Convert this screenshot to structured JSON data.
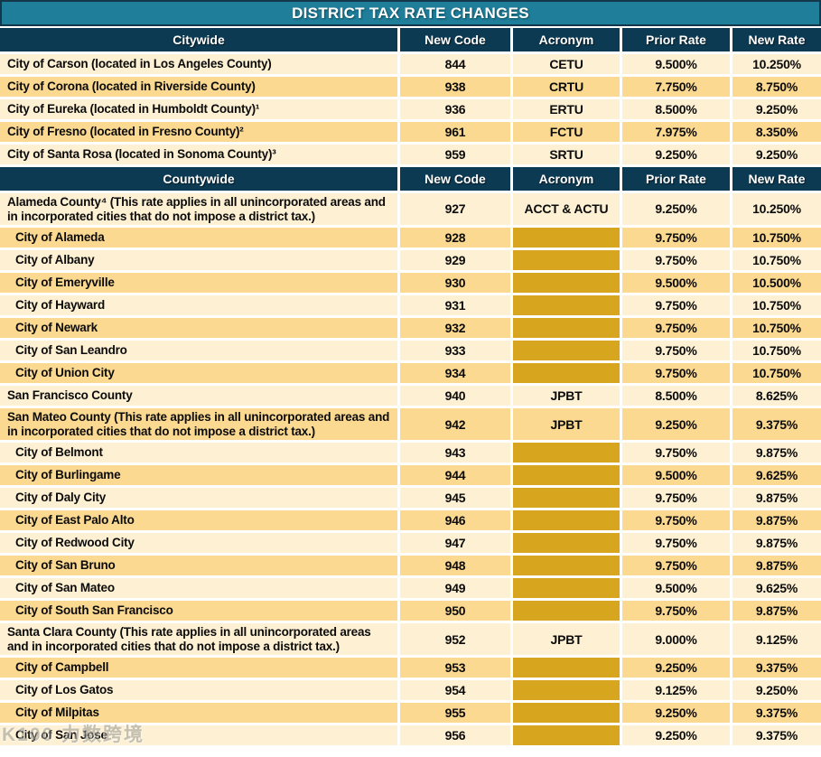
{
  "title": "DISTRICT TAX RATE CHANGES",
  "column_headers": [
    "New Code",
    "Acronym",
    "Prior Rate",
    "New Rate"
  ],
  "colors": {
    "title_teal": "#1F7F9B",
    "header_navy": "#0C3A52",
    "row_cream": "#FDF0D3",
    "row_tan": "#FBD991",
    "blank_gold": "#D8A51E"
  },
  "watermark": "K100 力数跨境",
  "sections": [
    {
      "label": "Citywide",
      "rows": [
        {
          "name": "City of Carson (located in Los Angeles County)",
          "code": "844",
          "acronym": "CETU",
          "prior": "9.500%",
          "new": "10.250%"
        },
        {
          "name": "City of Corona (located in Riverside County)",
          "code": "938",
          "acronym": "CRTU",
          "prior": "7.750%",
          "new": "8.750%"
        },
        {
          "name": "City of Eureka (located in Humboldt County)¹",
          "code": "936",
          "acronym": "ERTU",
          "prior": "8.500%",
          "new": "9.250%"
        },
        {
          "name": "City of Fresno (located in Fresno County)²",
          "code": "961",
          "acronym": "FCTU",
          "prior": "7.975%",
          "new": "8.350%"
        },
        {
          "name": "City of Santa Rosa (located in Sonoma County)³",
          "code": "959",
          "acronym": "SRTU",
          "prior": "9.250%",
          "new": "9.250%"
        }
      ]
    },
    {
      "label": "Countywide",
      "rows": [
        {
          "name": "Alameda County⁴ (This rate applies in all unincorporated areas and in incorporated cities that do not impose a district tax.)",
          "code": "927",
          "acronym": "ACCT & ACTU",
          "prior": "9.250%",
          "new": "10.250%"
        },
        {
          "name": "City of Alameda",
          "code": "928",
          "acronym": "",
          "prior": "9.750%",
          "new": "10.750%"
        },
        {
          "name": "City of Albany",
          "code": "929",
          "acronym": "",
          "prior": "9.750%",
          "new": "10.750%"
        },
        {
          "name": "City of Emeryville",
          "code": "930",
          "acronym": "",
          "prior": "9.500%",
          "new": "10.500%"
        },
        {
          "name": "City of Hayward",
          "code": "931",
          "acronym": "",
          "prior": "9.750%",
          "new": "10.750%"
        },
        {
          "name": "City of Newark",
          "code": "932",
          "acronym": "",
          "prior": "9.750%",
          "new": "10.750%"
        },
        {
          "name": "City of San Leandro",
          "code": "933",
          "acronym": "",
          "prior": "9.750%",
          "new": "10.750%"
        },
        {
          "name": "City of Union City",
          "code": "934",
          "acronym": "",
          "prior": "9.750%",
          "new": "10.750%"
        },
        {
          "name": "San Francisco County",
          "code": "940",
          "acronym": "JPBT",
          "prior": "8.500%",
          "new": "8.625%"
        },
        {
          "name": "San Mateo County (This rate applies in all unincorporated areas and in incorporated cities that do not impose a district tax.)",
          "code": "942",
          "acronym": "JPBT",
          "prior": "9.250%",
          "new": "9.375%"
        },
        {
          "name": "City of Belmont",
          "code": "943",
          "acronym": "",
          "prior": "9.750%",
          "new": "9.875%"
        },
        {
          "name": "City of Burlingame",
          "code": "944",
          "acronym": "",
          "prior": "9.500%",
          "new": "9.625%"
        },
        {
          "name": "City of Daly City",
          "code": "945",
          "acronym": "",
          "prior": "9.750%",
          "new": "9.875%"
        },
        {
          "name": "City of East Palo Alto",
          "code": "946",
          "acronym": "",
          "prior": "9.750%",
          "new": "9.875%"
        },
        {
          "name": "City of Redwood City",
          "code": "947",
          "acronym": "",
          "prior": "9.750%",
          "new": "9.875%"
        },
        {
          "name": "City of San Bruno",
          "code": "948",
          "acronym": "",
          "prior": "9.750%",
          "new": "9.875%"
        },
        {
          "name": "City of San Mateo",
          "code": "949",
          "acronym": "",
          "prior": "9.500%",
          "new": "9.625%"
        },
        {
          "name": "City of South San Francisco",
          "code": "950",
          "acronym": "",
          "prior": "9.750%",
          "new": "9.875%"
        },
        {
          "name": "Santa Clara County (This rate applies in all unincorporated areas and in incorporated cities that do not impose a district tax.)",
          "code": "952",
          "acronym": "JPBT",
          "prior": "9.000%",
          "new": "9.125%"
        },
        {
          "name": "City of Campbell",
          "code": "953",
          "acronym": "",
          "prior": "9.250%",
          "new": "9.375%"
        },
        {
          "name": "City of Los Gatos",
          "code": "954",
          "acronym": "",
          "prior": "9.125%",
          "new": "9.250%"
        },
        {
          "name": "City of Milpitas",
          "code": "955",
          "acronym": "",
          "prior": "9.250%",
          "new": "9.375%"
        },
        {
          "name": "City of San Jose",
          "code": "956",
          "acronym": "",
          "prior": "9.250%",
          "new": "9.375%"
        }
      ]
    }
  ]
}
